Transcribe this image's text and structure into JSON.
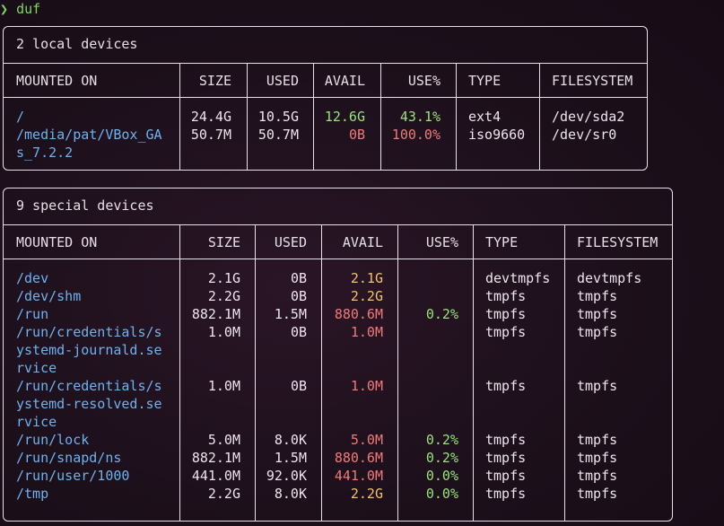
{
  "prompt": {
    "arrow": "❯",
    "command": "duf"
  },
  "colors": {
    "mount": "#6fb2ee",
    "ok": "#9be37a",
    "warn": "#f0c36a",
    "bad": "#f07a7a"
  },
  "local": {
    "title": "2 local devices",
    "headers": [
      "MOUNTED ON",
      "SIZE",
      "USED",
      "AVAIL",
      "USE%",
      "TYPE",
      "FILESYSTEM"
    ],
    "rows": [
      {
        "mount": [
          "/"
        ],
        "size": "24.4G",
        "used": "10.5G",
        "avail": "12.6G",
        "avail_color": "green",
        "use": "43.1%",
        "use_color": "green",
        "type": "ext4",
        "fs": "/dev/sda2"
      },
      {
        "mount": [
          "/media/pat/VBox_GA",
          "s_7.2.2"
        ],
        "size": "50.7M",
        "used": "50.7M",
        "avail": "0B",
        "avail_color": "red",
        "use": "100.0%",
        "use_color": "red",
        "type": "iso9660",
        "fs": "/dev/sr0"
      }
    ]
  },
  "special": {
    "title": "9 special devices",
    "headers": [
      "MOUNTED ON",
      "SIZE",
      "USED",
      "AVAIL",
      "USE%",
      "TYPE",
      "FILESYSTEM"
    ],
    "rows": [
      {
        "mount": [
          "/dev"
        ],
        "size": "2.1G",
        "used": "0B",
        "avail": "2.1G",
        "avail_color": "yellow",
        "use": "",
        "use_color": "green",
        "type": "devtmpfs",
        "fs": "devtmpfs"
      },
      {
        "mount": [
          "/dev/shm"
        ],
        "size": "2.2G",
        "used": "0B",
        "avail": "2.2G",
        "avail_color": "yellow",
        "use": "",
        "use_color": "green",
        "type": "tmpfs",
        "fs": "tmpfs"
      },
      {
        "mount": [
          "/run"
        ],
        "size": "882.1M",
        "used": "1.5M",
        "avail": "880.6M",
        "avail_color": "red",
        "use": "0.2%",
        "use_color": "green",
        "type": "tmpfs",
        "fs": "tmpfs"
      },
      {
        "mount": [
          "/run/credentials/s",
          "ystemd-journald.se",
          "rvice"
        ],
        "size": "1.0M",
        "used": "0B",
        "avail": "1.0M",
        "avail_color": "red",
        "use": "",
        "use_color": "green",
        "type": "tmpfs",
        "fs": "tmpfs"
      },
      {
        "mount": [
          "/run/credentials/s",
          "ystemd-resolved.se",
          "rvice"
        ],
        "size": "1.0M",
        "used": "0B",
        "avail": "1.0M",
        "avail_color": "red",
        "use": "",
        "use_color": "green",
        "type": "tmpfs",
        "fs": "tmpfs"
      },
      {
        "mount": [
          "/run/lock"
        ],
        "size": "5.0M",
        "used": "8.0K",
        "avail": "5.0M",
        "avail_color": "red",
        "use": "0.2%",
        "use_color": "green",
        "type": "tmpfs",
        "fs": "tmpfs"
      },
      {
        "mount": [
          "/run/snapd/ns"
        ],
        "size": "882.1M",
        "used": "1.5M",
        "avail": "880.6M",
        "avail_color": "red",
        "use": "0.2%",
        "use_color": "green",
        "type": "tmpfs",
        "fs": "tmpfs"
      },
      {
        "mount": [
          "/run/user/1000"
        ],
        "size": "441.0M",
        "used": "92.0K",
        "avail": "441.0M",
        "avail_color": "red",
        "use": "0.0%",
        "use_color": "green",
        "type": "tmpfs",
        "fs": "tmpfs"
      },
      {
        "mount": [
          "/tmp"
        ],
        "size": "2.2G",
        "used": "8.0K",
        "avail": "2.2G",
        "avail_color": "yellow",
        "use": "0.0%",
        "use_color": "green",
        "type": "tmpfs",
        "fs": "tmpfs"
      }
    ]
  }
}
